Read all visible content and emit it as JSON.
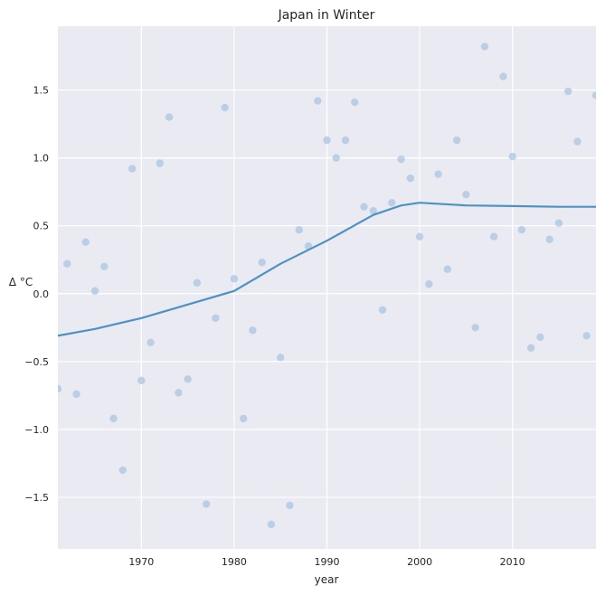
{
  "chart_data": {
    "type": "scatter",
    "title": "Japan in Winter",
    "xlabel": "year",
    "ylabel": "Δ °C",
    "xlim": [
      1961,
      2019
    ],
    "ylim": [
      -1.88,
      1.97
    ],
    "grid": true,
    "x_ticks": [
      1970,
      1980,
      1990,
      2000,
      2010
    ],
    "y_ticks": [
      -1.5,
      -1.0,
      -0.5,
      0.0,
      0.5,
      1.0,
      1.5
    ],
    "y_tick_labels": [
      "−1.5",
      "−1.0",
      "−0.5",
      "0.0",
      "0.5",
      "1.0",
      "1.5"
    ],
    "x_tick_labels": [
      "1970",
      "1980",
      "1990",
      "2000",
      "2010"
    ],
    "colors": {
      "background": "#EAEAF2",
      "grid": "#FFFFFF",
      "points": "#A9C6E2",
      "line": "#4C92C3"
    },
    "series": [
      {
        "kind": "scatter",
        "points": [
          [
            1961,
            -0.7
          ],
          [
            1962,
            0.22
          ],
          [
            1963,
            -0.74
          ],
          [
            1964,
            0.38
          ],
          [
            1965,
            0.02
          ],
          [
            1966,
            0.2
          ],
          [
            1967,
            -0.92
          ],
          [
            1968,
            -1.3
          ],
          [
            1969,
            0.92
          ],
          [
            1970,
            -0.64
          ],
          [
            1971,
            -0.36
          ],
          [
            1972,
            0.96
          ],
          [
            1973,
            1.3
          ],
          [
            1974,
            -0.73
          ],
          [
            1975,
            -0.63
          ],
          [
            1976,
            0.08
          ],
          [
            1977,
            -1.55
          ],
          [
            1978,
            -0.18
          ],
          [
            1979,
            1.37
          ],
          [
            1980,
            0.11
          ],
          [
            1981,
            -0.92
          ],
          [
            1982,
            -0.27
          ],
          [
            1983,
            0.23
          ],
          [
            1984,
            -1.7
          ],
          [
            1985,
            -0.47
          ],
          [
            1986,
            -1.56
          ],
          [
            1987,
            0.47
          ],
          [
            1988,
            0.35
          ],
          [
            1989,
            1.42
          ],
          [
            1990,
            1.13
          ],
          [
            1991,
            1.0
          ],
          [
            1992,
            1.13
          ],
          [
            1993,
            1.41
          ],
          [
            1994,
            0.64
          ],
          [
            1995,
            0.61
          ],
          [
            1996,
            -0.12
          ],
          [
            1997,
            0.67
          ],
          [
            1998,
            0.99
          ],
          [
            1999,
            0.85
          ],
          [
            2000,
            0.42
          ],
          [
            2001,
            0.07
          ],
          [
            2002,
            0.88
          ],
          [
            2003,
            0.18
          ],
          [
            2004,
            1.13
          ],
          [
            2005,
            0.73
          ],
          [
            2006,
            -0.25
          ],
          [
            2007,
            1.82
          ],
          [
            2008,
            0.42
          ],
          [
            2009,
            1.6
          ],
          [
            2010,
            1.01
          ],
          [
            2011,
            0.47
          ],
          [
            2012,
            -0.4
          ],
          [
            2013,
            -0.32
          ],
          [
            2014,
            0.4
          ],
          [
            2015,
            0.52
          ],
          [
            2016,
            1.49
          ],
          [
            2017,
            1.12
          ],
          [
            2018,
            -0.31
          ],
          [
            2019,
            1.46
          ]
        ]
      },
      {
        "kind": "line",
        "points": [
          [
            1961,
            -0.31
          ],
          [
            1965,
            -0.26
          ],
          [
            1970,
            -0.18
          ],
          [
            1975,
            -0.08
          ],
          [
            1980,
            0.02
          ],
          [
            1985,
            0.22
          ],
          [
            1990,
            0.39
          ],
          [
            1995,
            0.58
          ],
          [
            1998,
            0.65
          ],
          [
            2000,
            0.67
          ],
          [
            2005,
            0.65
          ],
          [
            2010,
            0.645
          ],
          [
            2015,
            0.64
          ],
          [
            2019,
            0.64
          ]
        ]
      }
    ]
  }
}
